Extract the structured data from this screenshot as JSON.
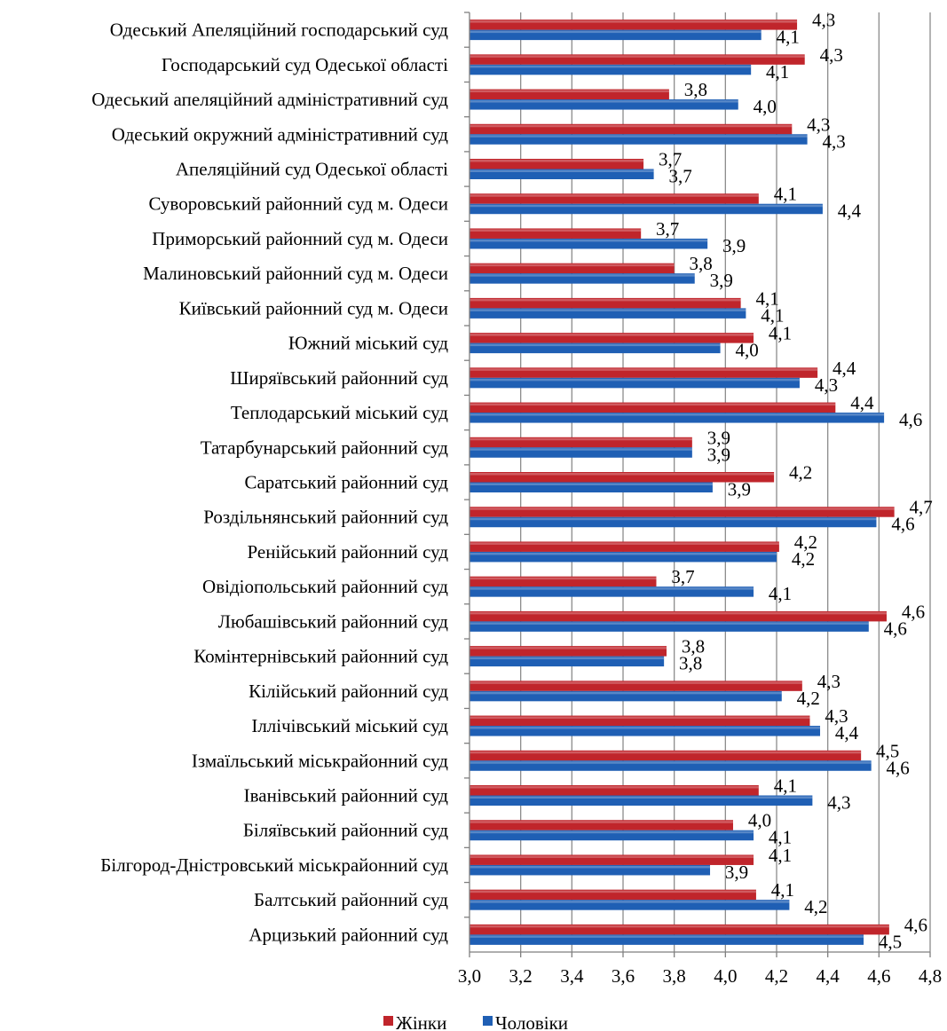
{
  "chart_data": {
    "type": "bar",
    "orientation": "horizontal",
    "categories": [
      "Одеський Апеляційний господарський суд",
      "Господарський суд Одеської області",
      "Одеський апеляційний адміністративний суд",
      "Одеський окружний адміністративний суд",
      "Апеляційний суд Одеської області",
      "Суворовський районний суд м. Одеси",
      "Приморський районний суд м. Одеси",
      "Малиновський районний суд м. Одеси",
      "Київський районний суд м. Одеси",
      "Южний міський суд",
      "Ширяївський районний суд",
      "Теплодарський міський суд",
      "Татарбунарський районний суд",
      "Саратський районний суд",
      "Роздільнянський районний суд",
      "Ренійський районний суд",
      "Овідіопольський районний суд",
      "Любашівський районний суд",
      "Комінтернівський районний суд",
      "Кілійський районний суд",
      "Іллічівський міський суд",
      "Ізмаїльський міськрайонний суд",
      "Іванівський районний суд",
      "Біляївський районний суд",
      "Білгород-Дністровський міськрайонний суд",
      "Балтський районний суд",
      "Арцизький районний суд"
    ],
    "series": [
      {
        "name": "Жінки",
        "color": "#c0252b",
        "values": [
          4.28,
          4.31,
          3.78,
          4.26,
          3.68,
          4.13,
          3.67,
          3.8,
          4.06,
          4.11,
          4.36,
          4.43,
          3.87,
          4.19,
          4.66,
          4.21,
          3.73,
          4.63,
          3.77,
          4.3,
          4.33,
          4.53,
          4.13,
          4.03,
          4.11,
          4.12,
          4.64
        ],
        "labels": [
          "4,3",
          "4,3",
          "3,8",
          "4,3",
          "3,7",
          "4,1",
          "3,7",
          "3,8",
          "4,1",
          "4,1",
          "4,4",
          "4,4",
          "3,9",
          "4,2",
          "4,7",
          "4,2",
          "3,7",
          "4,6",
          "3,8",
          "4,3",
          "4,3",
          "4,5",
          "4,1",
          "4,0",
          "4,1",
          "4,1",
          "4,6"
        ]
      },
      {
        "name": "Чоловіки",
        "color": "#1f5fb4",
        "values": [
          4.14,
          4.1,
          4.05,
          4.32,
          3.72,
          4.38,
          3.93,
          3.88,
          4.08,
          3.98,
          4.29,
          4.62,
          3.87,
          3.95,
          4.59,
          4.2,
          4.11,
          4.56,
          3.76,
          4.22,
          4.37,
          4.57,
          4.34,
          4.11,
          3.94,
          4.25,
          4.54
        ],
        "labels": [
          "4,1",
          "4,1",
          "4,0",
          "4,3",
          "3,7",
          "4,4",
          "3,9",
          "3,9",
          "4,1",
          "4,0",
          "4,3",
          "4,6",
          "3,9",
          "3,9",
          "4,6",
          "4,2",
          "4,1",
          "4,6",
          "3,8",
          "4,2",
          "4,4",
          "4,6",
          "4,3",
          "4,1",
          "3,9",
          "4,2",
          "4,5"
        ]
      }
    ],
    "xlim": [
      3.0,
      4.8
    ],
    "x_ticks": [
      "3,0",
      "3,2",
      "3,4",
      "3,6",
      "3,8",
      "4,0",
      "4,2",
      "4,4",
      "4,6",
      "4,8"
    ],
    "grid": true,
    "legend": "bottom"
  }
}
